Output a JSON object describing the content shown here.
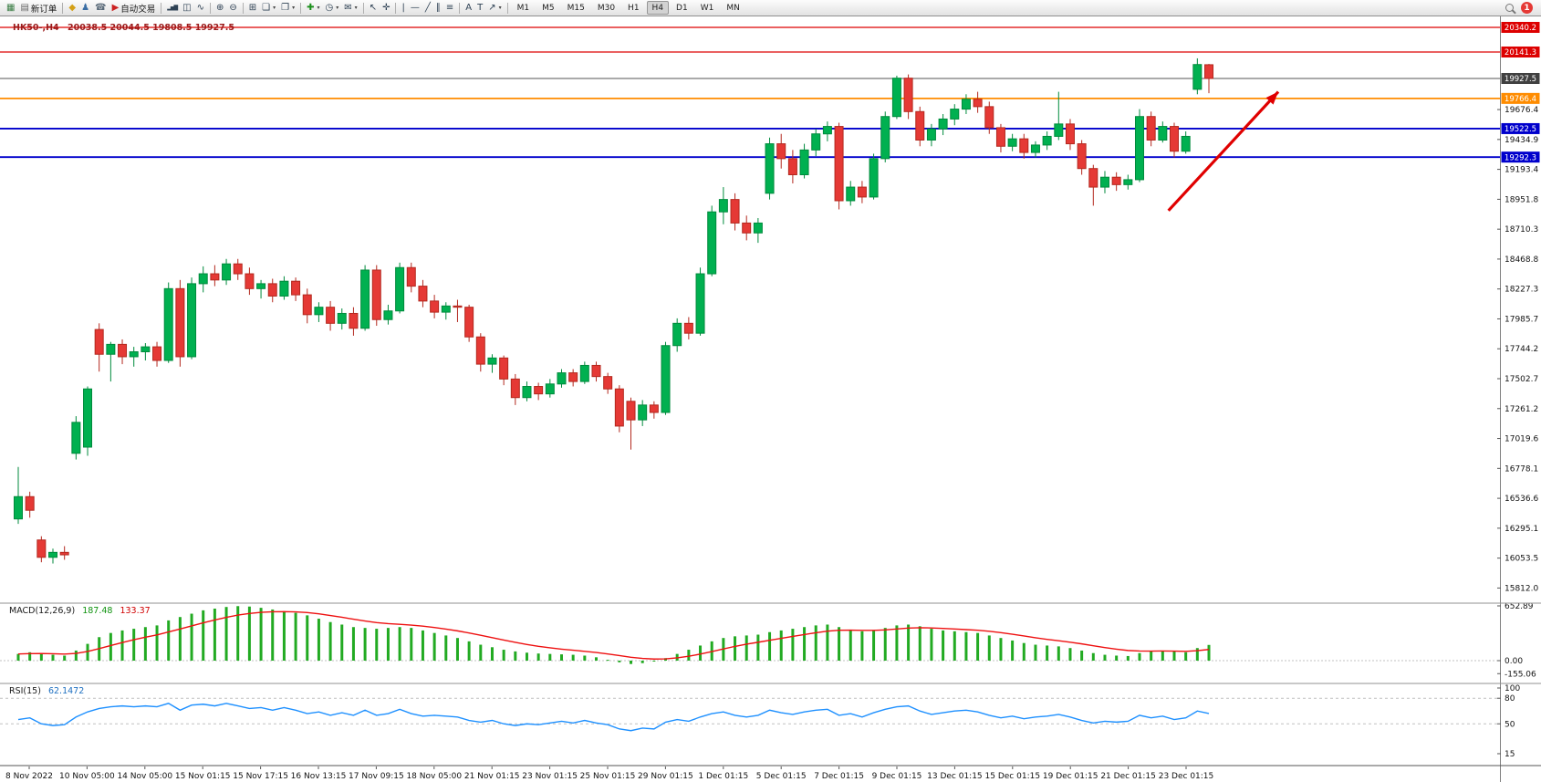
{
  "toolbar": {
    "groups": [
      {
        "items": [
          {
            "name": "new-chart-button",
            "glyph": "▦",
            "color": "#3a7d44"
          },
          {
            "name": "new-order-button",
            "glyph": "▤",
            "color": "#666666",
            "label": "新订单"
          }
        ]
      },
      {
        "items": [
          {
            "name": "styles-button",
            "glyph": "◆",
            "color": "#d4a017"
          },
          {
            "name": "community-button",
            "glyph": "♟",
            "color": "#3a6ea5"
          },
          {
            "name": "support-button",
            "glyph": "☎",
            "color": "#5a6b7a"
          },
          {
            "name": "auto-trading-button",
            "glyph": "▶",
            "color": "#cc2222",
            "label": "自动交易"
          }
        ]
      },
      {
        "items": [
          {
            "name": "bar-chart-button",
            "glyph": "▂▅▇",
            "color": "#2f4255",
            "small": true
          },
          {
            "name": "candlestick-chart-button",
            "glyph": "◫",
            "color": "#2f4255"
          },
          {
            "name": "line-chart-button",
            "glyph": "∿",
            "color": "#2f4255"
          }
        ]
      },
      {
        "items": [
          {
            "name": "zoom-in-button",
            "glyph": "⊕",
            "color": "#2f4255"
          },
          {
            "name": "zoom-out-button",
            "glyph": "⊖",
            "color": "#2f4255"
          }
        ]
      },
      {
        "items": [
          {
            "name": "tile-windows-button",
            "glyph": "⊞",
            "color": "#2f4255"
          },
          {
            "name": "cascade-windows-button",
            "glyph": "❏",
            "color": "#2f4255",
            "caret": true
          },
          {
            "name": "arrange-windows-button",
            "glyph": "❐",
            "color": "#2f4255",
            "caret": true
          }
        ]
      },
      {
        "items": [
          {
            "name": "indicators-button",
            "glyph": "✚",
            "color": "#1a8f1a",
            "caret": true
          },
          {
            "name": "periods-button",
            "glyph": "◷",
            "color": "#2f4255",
            "caret": true
          },
          {
            "name": "templates-button",
            "glyph": "✉",
            "color": "#2f4255",
            "caret": true
          }
        ]
      },
      {
        "items": [
          {
            "name": "cursor-button",
            "glyph": "↖",
            "color": "#2f4255"
          },
          {
            "name": "crosshair-button",
            "glyph": "✛",
            "color": "#2f4255"
          }
        ]
      },
      {
        "items": [
          {
            "name": "vertical-line-button",
            "glyph": "|",
            "color": "#2f4255"
          },
          {
            "name": "horizontal-line-button",
            "glyph": "—",
            "color": "#2f4255"
          },
          {
            "name": "trendline-button",
            "glyph": "╱",
            "color": "#2f4255"
          },
          {
            "name": "channel-button",
            "glyph": "∥",
            "color": "#2f4255"
          },
          {
            "name": "fibonacci-button",
            "glyph": "≡",
            "color": "#2f4255"
          }
        ]
      },
      {
        "items": [
          {
            "name": "text-button",
            "glyph": "A",
            "color": "#2f4255"
          },
          {
            "name": "text-label-button",
            "glyph": "T",
            "color": "#2f4255"
          },
          {
            "name": "arrows-button",
            "glyph": "↗",
            "color": "#2f4255",
            "caret": true
          }
        ]
      }
    ],
    "timeframes": [
      "M1",
      "M5",
      "M15",
      "M30",
      "H1",
      "H4",
      "D1",
      "W1",
      "MN"
    ],
    "active_timeframe": "H4",
    "caret_glyph": "▾",
    "badge_count": "1"
  },
  "colors": {
    "bull": "#00b050",
    "bull_stroke": "#008a3c",
    "bear": "#e53935",
    "bear_stroke": "#b3281e",
    "macd_hist": "#22aa22",
    "macd_signal": "#ee1111",
    "rsi_line": "#1e90ff",
    "grid_dotted": "#c0c0c0",
    "axis_text": "#111111"
  },
  "chart_data": {
    "type": "candlestick",
    "symbol_timeframe_label": "HK50-,H4",
    "ohlc_label": "20038.5 20044.5 19808.5 19927.5",
    "current_bar": {
      "open": 20038.5,
      "high": 20044.5,
      "low": 19808.5,
      "close": 19927.5
    },
    "ylim": [
      15697,
      20384
    ],
    "horizontal_lines": [
      {
        "price": 20340.2,
        "label": "20340.2",
        "color": "#dd0000",
        "width": 1.3,
        "box_color": "#dd0000"
      },
      {
        "price": 20141.3,
        "label": "20141.3",
        "color": "#dd0000",
        "width": 1.3,
        "box_color": "#dd0000"
      },
      {
        "price": 19927.5,
        "label": "19927.5",
        "color": "#555555",
        "width": 1,
        "box_color": "#404040"
      },
      {
        "price": 19766.4,
        "label": "19766.4",
        "color": "#ff8c00",
        "width": 1.8,
        "box_color": "#ff8c00"
      },
      {
        "price": 19522.5,
        "label": "19522.5",
        "color": "#0000cc",
        "width": 1.8,
        "box_color": "#0000cc"
      },
      {
        "price": 19292.3,
        "label": "19292.3",
        "color": "#0000cc",
        "width": 1.8,
        "box_color": "#0000cc"
      }
    ],
    "y_axis_ticks": [
      19676.4,
      19434.9,
      19193.4,
      18951.8,
      18710.3,
      18468.8,
      18227.3,
      17985.7,
      17744.2,
      17502.7,
      17261.2,
      17019.6,
      16778.1,
      16536.6,
      16295.1,
      16053.5,
      15812.0
    ],
    "time_labels": [
      "8 Nov 2022",
      "10 Nov 05:00",
      "14 Nov 05:00",
      "15 Nov 01:15",
      "15 Nov 17:15",
      "16 Nov 13:15",
      "17 Nov 09:15",
      "18 Nov 05:00",
      "21 Nov 01:15",
      "23 Nov 01:15",
      "25 Nov 01:15",
      "29 Nov 01:15",
      "1 Dec 01:15",
      "5 Dec 01:15",
      "7 Dec 01:15",
      "9 Dec 01:15",
      "13 Dec 01:15",
      "15 Dec 01:15",
      "19 Dec 01:15",
      "21 Dec 01:15",
      "23 Dec 01:15"
    ],
    "candles": [
      [
        16370,
        16790,
        16330,
        16550
      ],
      [
        16550,
        16590,
        16380,
        16440
      ],
      [
        16200,
        16230,
        16020,
        16060
      ],
      [
        16060,
        16130,
        16010,
        16100
      ],
      [
        16100,
        16150,
        16040,
        16080
      ],
      [
        16900,
        17200,
        16850,
        17150
      ],
      [
        16950,
        17440,
        16880,
        17420
      ],
      [
        17900,
        17950,
        17560,
        17700
      ],
      [
        17700,
        17800,
        17480,
        17780
      ],
      [
        17780,
        17820,
        17620,
        17680
      ],
      [
        17680,
        17760,
        17600,
        17720
      ],
      [
        17720,
        17790,
        17650,
        17760
      ],
      [
        17760,
        17800,
        17600,
        17650
      ],
      [
        17650,
        18280,
        17630,
        18230
      ],
      [
        18230,
        18300,
        17600,
        17680
      ],
      [
        17680,
        18320,
        17660,
        18270
      ],
      [
        18270,
        18410,
        18200,
        18350
      ],
      [
        18350,
        18420,
        18250,
        18300
      ],
      [
        18300,
        18470,
        18260,
        18430
      ],
      [
        18430,
        18470,
        18300,
        18350
      ],
      [
        18350,
        18400,
        18180,
        18230
      ],
      [
        18230,
        18300,
        18150,
        18270
      ],
      [
        18270,
        18310,
        18120,
        18170
      ],
      [
        18170,
        18330,
        18140,
        18290
      ],
      [
        18290,
        18320,
        18130,
        18180
      ],
      [
        18180,
        18230,
        17950,
        18020
      ],
      [
        18020,
        18120,
        17960,
        18080
      ],
      [
        18080,
        18130,
        17890,
        17950
      ],
      [
        17950,
        18070,
        17900,
        18030
      ],
      [
        18030,
        18080,
        17850,
        17910
      ],
      [
        17910,
        18420,
        17890,
        18380
      ],
      [
        18380,
        18420,
        17930,
        17980
      ],
      [
        17980,
        18100,
        17940,
        18050
      ],
      [
        18050,
        18440,
        18030,
        18400
      ],
      [
        18400,
        18440,
        18200,
        18250
      ],
      [
        18250,
        18300,
        18080,
        18130
      ],
      [
        18130,
        18180,
        17990,
        18040
      ],
      [
        18040,
        18120,
        17980,
        18090
      ],
      [
        18090,
        18140,
        17960,
        18080
      ],
      [
        18080,
        18100,
        17800,
        17840
      ],
      [
        17840,
        17870,
        17560,
        17620
      ],
      [
        17620,
        17700,
        17550,
        17670
      ],
      [
        17670,
        17690,
        17450,
        17500
      ],
      [
        17500,
        17540,
        17290,
        17350
      ],
      [
        17350,
        17480,
        17320,
        17440
      ],
      [
        17440,
        17470,
        17330,
        17380
      ],
      [
        17380,
        17500,
        17350,
        17460
      ],
      [
        17460,
        17580,
        17430,
        17550
      ],
      [
        17550,
        17580,
        17440,
        17480
      ],
      [
        17480,
        17640,
        17460,
        17610
      ],
      [
        17610,
        17640,
        17480,
        17520
      ],
      [
        17520,
        17550,
        17380,
        17420
      ],
      [
        17420,
        17450,
        17070,
        17120
      ],
      [
        17320,
        17350,
        16930,
        17170
      ],
      [
        17170,
        17330,
        17120,
        17290
      ],
      [
        17290,
        17320,
        17180,
        17230
      ],
      [
        17230,
        17800,
        17210,
        17770
      ],
      [
        17770,
        17990,
        17720,
        17950
      ],
      [
        17950,
        18000,
        17820,
        17870
      ],
      [
        17870,
        18400,
        17850,
        18350
      ],
      [
        18350,
        18900,
        18330,
        18850
      ],
      [
        18850,
        19050,
        18750,
        18950
      ],
      [
        18950,
        19000,
        18700,
        18760
      ],
      [
        18760,
        18820,
        18620,
        18680
      ],
      [
        18680,
        18800,
        18600,
        18760
      ],
      [
        19000,
        19450,
        18950,
        19400
      ],
      [
        19400,
        19480,
        19200,
        19280
      ],
      [
        19280,
        19350,
        19080,
        19150
      ],
      [
        19150,
        19400,
        19120,
        19350
      ],
      [
        19350,
        19520,
        19300,
        19480
      ],
      [
        19480,
        19580,
        19420,
        19540
      ],
      [
        19540,
        19570,
        18870,
        18940
      ],
      [
        18940,
        19100,
        18900,
        19050
      ],
      [
        19050,
        19100,
        18920,
        18970
      ],
      [
        18970,
        19320,
        18950,
        19280
      ],
      [
        19280,
        19660,
        19250,
        19620
      ],
      [
        19620,
        19950,
        19600,
        19930
      ],
      [
        19930,
        19960,
        19600,
        19660
      ],
      [
        19660,
        19700,
        19380,
        19430
      ],
      [
        19430,
        19560,
        19380,
        19520
      ],
      [
        19520,
        19640,
        19470,
        19600
      ],
      [
        19600,
        19720,
        19550,
        19680
      ],
      [
        19680,
        19800,
        19640,
        19760
      ],
      [
        19760,
        19820,
        19650,
        19700
      ],
      [
        19700,
        19740,
        19480,
        19530
      ],
      [
        19530,
        19560,
        19330,
        19380
      ],
      [
        19380,
        19480,
        19340,
        19440
      ],
      [
        19440,
        19480,
        19280,
        19330
      ],
      [
        19330,
        19420,
        19290,
        19390
      ],
      [
        19390,
        19500,
        19350,
        19460
      ],
      [
        19460,
        19820,
        19430,
        19560
      ],
      [
        19560,
        19600,
        19350,
        19400
      ],
      [
        19400,
        19430,
        19150,
        19200
      ],
      [
        19200,
        19230,
        18900,
        19050
      ],
      [
        19050,
        19180,
        19000,
        19130
      ],
      [
        19130,
        19170,
        19020,
        19070
      ],
      [
        19070,
        19150,
        19030,
        19110
      ],
      [
        19110,
        19680,
        19090,
        19620
      ],
      [
        19620,
        19660,
        19380,
        19430
      ],
      [
        19430,
        19580,
        19410,
        19540
      ],
      [
        19540,
        19570,
        19290,
        19340
      ],
      [
        19340,
        19500,
        19320,
        19460
      ],
      [
        19840,
        20090,
        19800,
        20040
      ],
      [
        20038.5,
        20044.5,
        19808.5,
        19927.5
      ]
    ],
    "indicators": {
      "macd": {
        "label": "MACD(12,26,9)",
        "main_value": "187.48",
        "signal_value": "133.37",
        "scale": [
          652.89,
          0,
          -155.06
        ],
        "histogram": [
          80,
          100,
          90,
          70,
          60,
          120,
          200,
          280,
          330,
          360,
          380,
          400,
          420,
          480,
          520,
          560,
          600,
          620,
          640,
          650,
          645,
          630,
          610,
          590,
          570,
          540,
          500,
          460,
          430,
          400,
          390,
          380,
          390,
          400,
          390,
          360,
          330,
          300,
          270,
          230,
          190,
          160,
          130,
          110,
          95,
          85,
          80,
          75,
          70,
          60,
          40,
          10,
          -20,
          -40,
          -30,
          -10,
          30,
          80,
          130,
          180,
          230,
          270,
          290,
          300,
          310,
          340,
          360,
          380,
          400,
          420,
          430,
          400,
          370,
          350,
          360,
          390,
          420,
          430,
          410,
          380,
          360,
          350,
          340,
          330,
          300,
          270,
          240,
          210,
          190,
          180,
          170,
          150,
          120,
          90,
          70,
          60,
          55,
          90,
          110,
          120,
          110,
          100,
          150,
          187.48
        ],
        "signal": [
          80,
          84,
          85,
          82,
          78,
          86,
          109,
          143,
          180,
          216,
          249,
          279,
          307,
          342,
          378,
          414,
          451,
          485,
          516,
          543,
          563,
          576,
          583,
          584,
          581,
          573,
          558,
          538,
          517,
          494,
          473,
          454,
          441,
          433,
          424,
          411,
          395,
          376,
          355,
          330,
          302,
          274,
          245,
          218,
          193,
          171,
          153,
          137,
          124,
          111,
          97,
          80,
          60,
          40,
          26,
          19,
          21,
          33,
          52,
          78,
          108,
          140,
          170,
          196,
          219,
          243,
          266,
          289,
          311,
          333,
          352,
          362,
          364,
          361,
          361,
          367,
          378,
          388,
          392,
          390,
          384,
          377,
          370,
          362,
          350,
          334,
          315,
          294,
          273,
          254,
          237,
          220,
          200,
          178,
          156,
          137,
          121,
          115,
          114,
          115,
          114,
          111,
          119,
          133.37
        ]
      },
      "rsi": {
        "label": "RSI(15)",
        "value": "62.1472",
        "scale": [
          100,
          80,
          50,
          15
        ],
        "levels": [
          80,
          50
        ],
        "values": [
          55,
          57,
          50,
          48,
          49,
          58,
          64,
          68,
          70,
          71,
          70,
          71,
          70,
          74,
          66,
          72,
          73,
          71,
          74,
          71,
          68,
          69,
          66,
          69,
          66,
          62,
          64,
          60,
          63,
          60,
          66,
          60,
          62,
          67,
          62,
          59,
          60,
          59,
          58,
          54,
          52,
          54,
          50,
          48,
          50,
          49,
          51,
          53,
          51,
          54,
          51,
          49,
          44,
          42,
          45,
          44,
          52,
          55,
          53,
          58,
          62,
          64,
          60,
          58,
          60,
          66,
          63,
          61,
          64,
          66,
          67,
          60,
          62,
          58,
          63,
          67,
          70,
          71,
          65,
          61,
          63,
          65,
          66,
          64,
          60,
          57,
          59,
          56,
          58,
          59,
          61,
          58,
          54,
          51,
          53,
          52,
          53,
          60,
          57,
          59,
          55,
          57,
          65,
          62.15
        ]
      }
    },
    "annotations": [
      {
        "type": "arrow",
        "color": "#e00000",
        "from": {
          "bar": 99.5,
          "price": 18860
        },
        "to": {
          "bar": 109,
          "price": 19820
        }
      }
    ]
  }
}
